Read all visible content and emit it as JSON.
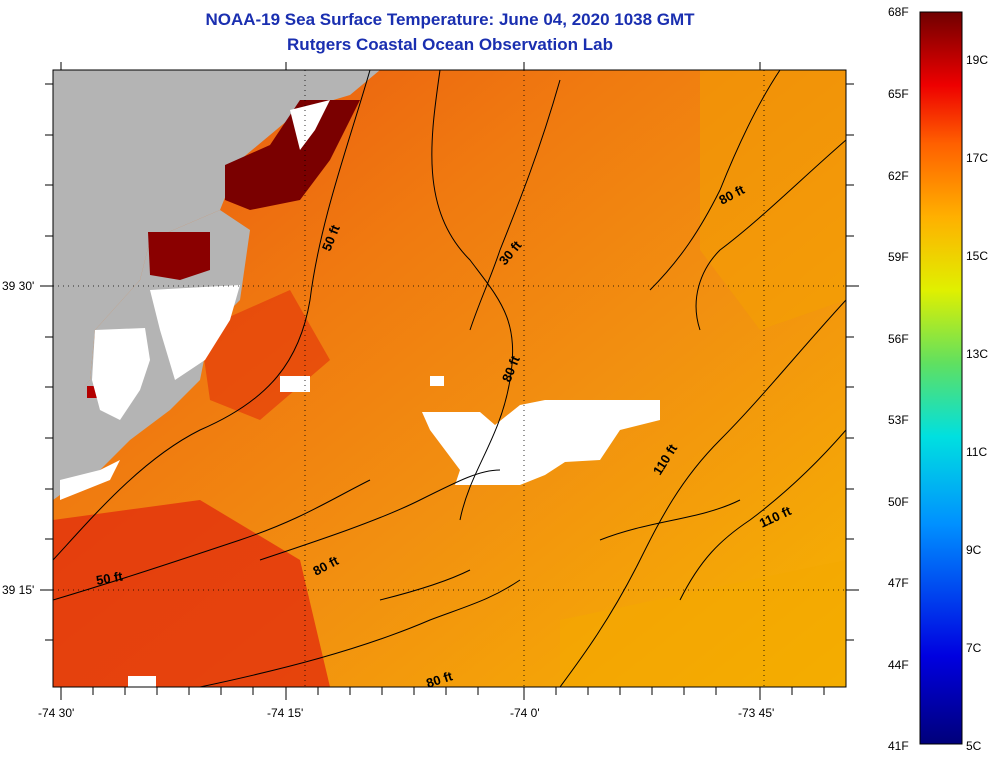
{
  "title": {
    "line1": "NOAA-19 Sea Surface Temperature:  June 04, 2020 1038 GMT",
    "line2": "Rutgers Coastal Ocean Observation Lab"
  },
  "colors": {
    "title": "#1a2fb0",
    "land": "#b4b4b4",
    "cloud": "#ffffff",
    "sst_warm": "#e84a10",
    "sst_hot": "#7a0000",
    "sst_cool": "#f6b000"
  },
  "map": {
    "lat_labels": [
      "39 30'",
      "39 15'"
    ],
    "lon_labels": [
      "-74 30'",
      "-74 15'",
      "-74 0'",
      "-73 45'"
    ],
    "contour_labels": [
      "50 ft",
      "30 ft",
      "80 ft",
      "80 ft",
      "110 ft",
      "110 ft",
      "50 ft",
      "80 ft",
      "80 ft"
    ]
  },
  "colorbar": {
    "fahrenheit": [
      "68F",
      "65F",
      "62F",
      "59F",
      "56F",
      "53F",
      "50F",
      "47F",
      "44F",
      "41F"
    ],
    "celsius": [
      "19C",
      "17C",
      "15C",
      "13C",
      "11C",
      "9C",
      "7C",
      "5C"
    ]
  }
}
